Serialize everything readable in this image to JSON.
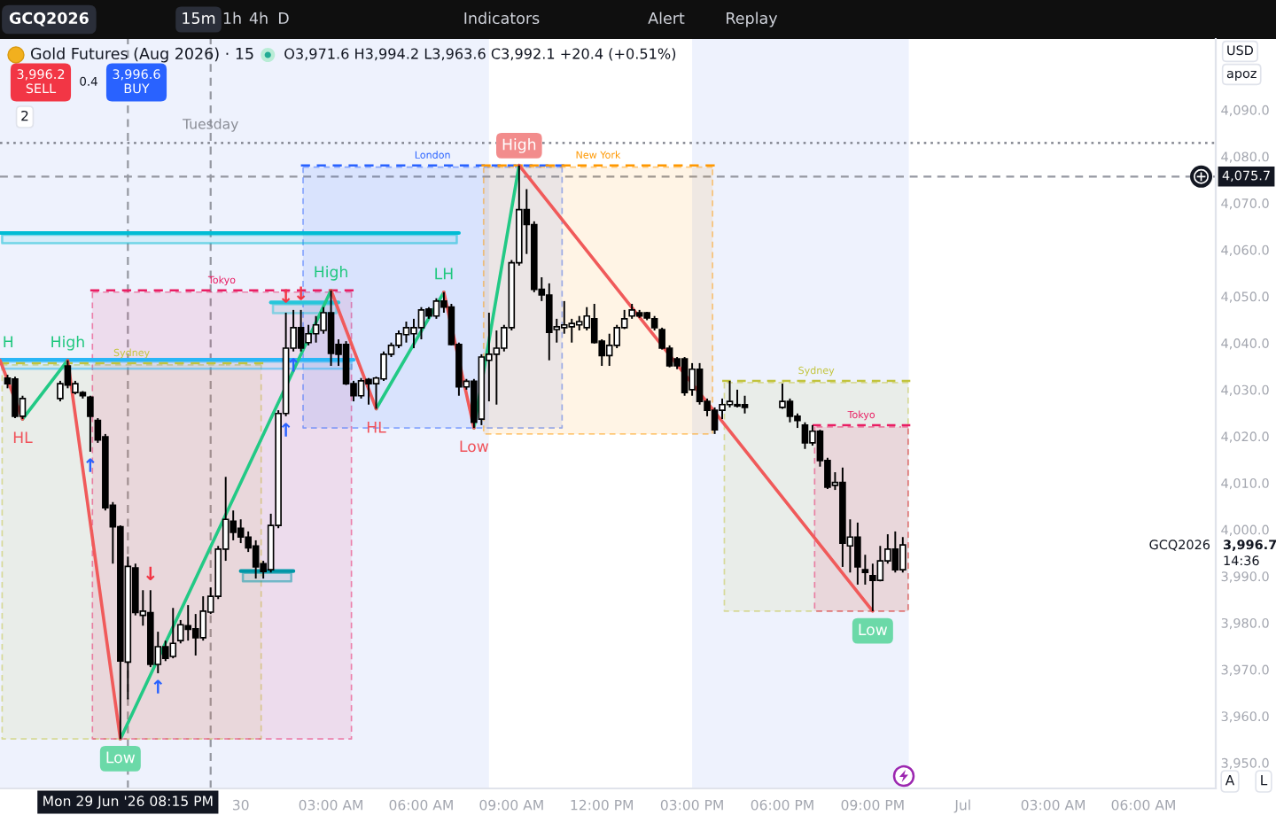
{
  "chart_data": {
    "type": "candlestick",
    "title": "Gold Futures (Aug 2026) · 15",
    "subtitle": "O3,971.6 H3,994.2 L3,963.6 C3,992.1 +20.4 (+0.51%)",
    "color": "#000000",
    "x": [
      "2026-06-29T16:15",
      "2026-06-29T16:30",
      "2026-06-29T16:45",
      "2026-06-29T18:00",
      "2026-06-29T18:15",
      "2026-06-29T18:30",
      "2026-06-29T18:45",
      "2026-06-29T19:00",
      "2026-06-29T19:15",
      "2026-06-29T19:30",
      "2026-06-29T19:45",
      "2026-06-29T20:00",
      "2026-06-29T20:15",
      "2026-06-29T20:30",
      "2026-06-29T20:45",
      "2026-06-29T21:00",
      "2026-06-29T21:15",
      "2026-06-29T21:30",
      "2026-06-29T21:45",
      "2026-06-29T22:00",
      "2026-06-29T22:15",
      "2026-06-29T22:30",
      "2026-06-29T22:45",
      "2026-06-29T23:00",
      "2026-06-29T23:15",
      "2026-06-29T23:30",
      "2026-06-29T23:45",
      "2026-06-30T00:00",
      "2026-06-30T00:15",
      "2026-06-30T00:30",
      "2026-06-30T00:45",
      "2026-06-30T01:00",
      "2026-06-30T01:15",
      "2026-06-30T01:30",
      "2026-06-30T01:45",
      "2026-06-30T02:00",
      "2026-06-30T02:15",
      "2026-06-30T02:30",
      "2026-06-30T02:45",
      "2026-06-30T03:00",
      "2026-06-30T03:15",
      "2026-06-30T03:30",
      "2026-06-30T03:45",
      "2026-06-30T04:00",
      "2026-06-30T04:15",
      "2026-06-30T04:30",
      "2026-06-30T04:45",
      "2026-06-30T05:00",
      "2026-06-30T05:15",
      "2026-06-30T05:30",
      "2026-06-30T05:45",
      "2026-06-30T06:00",
      "2026-06-30T06:15",
      "2026-06-30T06:30",
      "2026-06-30T06:45",
      "2026-06-30T07:00",
      "2026-06-30T07:15",
      "2026-06-30T07:30",
      "2026-06-30T07:45",
      "2026-06-30T08:00",
      "2026-06-30T08:15",
      "2026-06-30T08:30",
      "2026-06-30T08:45",
      "2026-06-30T09:00",
      "2026-06-30T09:15",
      "2026-06-30T09:30",
      "2026-06-30T09:45",
      "2026-06-30T10:00",
      "2026-06-30T10:15",
      "2026-06-30T10:30",
      "2026-06-30T10:45",
      "2026-06-30T11:00",
      "2026-06-30T11:15",
      "2026-06-30T11:30",
      "2026-06-30T11:45",
      "2026-06-30T12:00",
      "2026-06-30T12:15",
      "2026-06-30T12:30",
      "2026-06-30T12:45",
      "2026-06-30T13:00",
      "2026-06-30T13:15",
      "2026-06-30T13:30",
      "2026-06-30T13:45",
      "2026-06-30T14:00",
      "2026-06-30T14:15",
      "2026-06-30T14:30",
      "2026-06-30T14:45",
      "2026-06-30T15:00",
      "2026-06-30T15:15",
      "2026-06-30T15:30",
      "2026-06-30T15:45",
      "2026-06-30T16:00",
      "2026-06-30T16:15",
      "2026-06-30T16:30",
      "2026-06-30T16:45",
      "2026-06-30T18:00",
      "2026-06-30T18:15",
      "2026-06-30T18:30",
      "2026-06-30T18:45",
      "2026-06-30T19:00",
      "2026-06-30T19:15",
      "2026-06-30T19:30",
      "2026-06-30T19:45",
      "2026-06-30T20:00",
      "2026-06-30T20:15",
      "2026-06-30T20:30",
      "2026-06-30T20:45",
      "2026-06-30T21:00",
      "2026-06-30T21:15",
      "2026-06-30T21:30",
      "2026-06-30T21:45",
      "2026-06-30T22:00"
    ],
    "ohlc": [
      [
        4032.5,
        4033.2,
        4030.3,
        4031.3
      ],
      [
        4032.3,
        4032.8,
        4023.9,
        4024.3
      ],
      [
        4024.3,
        4028.7,
        4023.7,
        4028.1
      ],
      [
        4028.1,
        4031.9,
        4027.5,
        4031.3
      ],
      [
        4035.1,
        4036.3,
        4030.3,
        4031.0
      ],
      [
        4029.4,
        4031.9,
        4029.0,
        4031.3
      ],
      [
        4029.4,
        4029.7,
        4028.1,
        4028.7
      ],
      [
        4028.4,
        4028.7,
        4016.7,
        4024.3
      ],
      [
        4023.4,
        4023.9,
        4018.6,
        4019.2
      ],
      [
        4019.9,
        4020.5,
        4004.1,
        4004.7
      ],
      [
        4005.2,
        4005.9,
        3992.7,
        4000.6
      ],
      [
        4000.6,
        4000.9,
        3955.1,
        3971.8
      ],
      [
        3971.6,
        3994.2,
        3963.6,
        3992.1
      ],
      [
        3991.8,
        3992.7,
        3981.6,
        3982.2
      ],
      [
        3981.6,
        3987.0,
        3979.4,
        3982.5
      ],
      [
        3982.2,
        3987.0,
        3970.5,
        3971.1
      ],
      [
        3971.1,
        3978.1,
        3969.2,
        3974.9
      ],
      [
        3974.9,
        3976.2,
        3971.8,
        3972.4
      ],
      [
        3972.8,
        3983.2,
        3972.4,
        3975.6
      ],
      [
        3976.2,
        3980.6,
        3975.6,
        3979.6
      ],
      [
        3979.4,
        3983.8,
        3976.2,
        3978.6
      ],
      [
        3978.7,
        3981.9,
        3973.0,
        3976.8
      ],
      [
        3976.8,
        3985.7,
        3976.2,
        3982.5
      ],
      [
        3982.3,
        3987.6,
        3981.9,
        3985.7
      ],
      [
        3985.7,
        3996.5,
        3985.1,
        3995.8
      ],
      [
        3995.8,
        4011.3,
        3993.3,
        4002.2
      ],
      [
        4001.8,
        4004.1,
        3997.7,
        3999.4
      ],
      [
        4000.3,
        4002.2,
        3997.1,
        3998.4
      ],
      [
        3998.4,
        3999.6,
        3995.2,
        3996.1
      ],
      [
        3996.5,
        3997.7,
        3989.5,
        3992.0
      ],
      [
        3992.7,
        3993.3,
        3989.5,
        3991.0
      ],
      [
        3991.4,
        4003.4,
        3990.8,
        4000.9
      ],
      [
        4000.9,
        4025.6,
        4000.3,
        4024.9
      ],
      [
        4024.9,
        4046.5,
        4024.3,
        4038.9
      ],
      [
        4038.9,
        4047.1,
        4038.2,
        4043.3
      ],
      [
        4043.3,
        4047.1,
        4038.2,
        4038.9
      ],
      [
        4040.1,
        4043.9,
        4039.5,
        4042.0
      ],
      [
        4042.0,
        4045.8,
        4040.1,
        4043.9
      ],
      [
        4042.7,
        4047.7,
        4042.0,
        4046.5
      ],
      [
        4046.5,
        4051.3,
        4035.1,
        4037.8
      ],
      [
        4039.7,
        4040.8,
        4035.1,
        4037.6
      ],
      [
        4039.7,
        4040.4,
        4031.0,
        4031.3
      ],
      [
        4031.3,
        4031.9,
        4027.5,
        4028.7
      ],
      [
        4028.7,
        4032.5,
        4028.1,
        4031.9
      ],
      [
        4032.2,
        4032.5,
        4026.8,
        4031.3
      ],
      [
        4031.3,
        4032.8,
        4025.9,
        4032.5
      ],
      [
        4032.3,
        4038.2,
        4031.9,
        4037.6
      ],
      [
        4037.6,
        4040.1,
        4037.0,
        4039.5
      ],
      [
        4039.5,
        4042.7,
        4038.9,
        4042.0
      ],
      [
        4041.8,
        4044.6,
        4040.1,
        4043.3
      ],
      [
        4042.0,
        4045.2,
        4038.9,
        4043.3
      ],
      [
        4043.3,
        4047.7,
        4040.8,
        4047.1
      ],
      [
        4047.3,
        4047.7,
        4045.2,
        4045.8
      ],
      [
        4045.8,
        4049.6,
        4045.2,
        4049.0
      ],
      [
        4049.0,
        4050.9,
        4046.5,
        4047.7
      ],
      [
        4047.7,
        4048.4,
        4039.5,
        4039.7
      ],
      [
        4039.7,
        4040.1,
        4028.7,
        4030.6
      ],
      [
        4030.6,
        4032.3,
        4030.0,
        4031.8
      ],
      [
        4031.8,
        4032.3,
        4021.8,
        4023.0
      ],
      [
        4023.7,
        4037.6,
        4022.4,
        4037.0
      ],
      [
        4036.3,
        4046.5,
        4027.5,
        4037.6
      ],
      [
        4037.6,
        4042.7,
        4026.8,
        4038.9
      ],
      [
        4038.9,
        4043.9,
        4038.2,
        4043.3
      ],
      [
        4043.3,
        4057.8,
        4042.7,
        4057.2
      ],
      [
        4057.2,
        4078.1,
        4056.6,
        4068.6
      ],
      [
        4068.6,
        4073.0,
        4059.1,
        4065.4
      ],
      [
        4065.4,
        4066.1,
        4050.9,
        4051.5
      ],
      [
        4051.5,
        4054.1,
        4049.0,
        4050.3
      ],
      [
        4050.3,
        4052.8,
        4036.3,
        4042.3
      ],
      [
        4042.9,
        4045.2,
        4040.1,
        4043.5
      ],
      [
        4043.3,
        4049.0,
        4042.0,
        4043.9
      ],
      [
        4043.5,
        4045.2,
        4040.1,
        4044.2
      ],
      [
        4043.9,
        4045.8,
        4042.7,
        4044.6
      ],
      [
        4043.3,
        4047.7,
        4042.7,
        4045.8
      ],
      [
        4045.2,
        4048.4,
        4039.9,
        4040.1
      ],
      [
        4040.4,
        4040.8,
        4035.1,
        4037.3
      ],
      [
        4037.3,
        4042.0,
        4035.1,
        4039.5
      ],
      [
        4039.5,
        4043.9,
        4038.9,
        4043.3
      ],
      [
        4043.3,
        4047.1,
        4043.0,
        4045.2
      ],
      [
        4045.8,
        4048.4,
        4045.2,
        4047.1
      ],
      [
        4046.5,
        4047.1,
        4045.4,
        4045.8
      ],
      [
        4046.5,
        4046.7,
        4044.9,
        4045.4
      ],
      [
        4045.2,
        4045.8,
        4042.7,
        4043.3
      ],
      [
        4042.9,
        4043.3,
        4038.6,
        4038.9
      ],
      [
        4038.9,
        4039.5,
        4034.8,
        4035.1
      ],
      [
        4036.6,
        4037.0,
        4034.4,
        4035.1
      ],
      [
        4036.6,
        4037.0,
        4028.7,
        4029.4
      ],
      [
        4030.0,
        4035.7,
        4028.7,
        4034.4
      ],
      [
        4034.4,
        4035.7,
        4026.8,
        4027.5
      ],
      [
        4027.5,
        4028.1,
        4024.3,
        4025.6
      ],
      [
        4025.6,
        4026.2,
        4020.5,
        4021.4
      ],
      [
        4025.6,
        4028.1,
        4023.7,
        4026.8
      ],
      [
        4026.8,
        4031.9,
        4026.2,
        4027.5
      ],
      [
        4026.5,
        4030.0,
        4026.2,
        4026.8
      ],
      [
        4026.8,
        4028.7,
        4024.9,
        4026.2
      ],
      [
        4026.2,
        4031.3,
        4025.9,
        4027.5
      ],
      [
        4027.5,
        4028.1,
        4023.0,
        4024.3
      ],
      [
        4024.3,
        4024.9,
        4021.8,
        4023.4
      ],
      [
        4022.4,
        4023.0,
        4017.3,
        4018.6
      ],
      [
        4018.6,
        4022.4,
        4018.0,
        4021.1
      ],
      [
        4021.1,
        4021.4,
        4013.5,
        4014.8
      ],
      [
        4014.8,
        4015.4,
        4008.7,
        4009.1
      ],
      [
        4009.5,
        4012.3,
        4008.5,
        4010.1
      ],
      [
        4010.1,
        4013.3,
        3992.0,
        3997.1
      ],
      [
        3996.5,
        4002.2,
        3990.8,
        3998.4
      ],
      [
        3998.4,
        4001.5,
        3988.2,
        3992.0
      ],
      [
        3991.4,
        3994.6,
        3988.2,
        3990.8
      ],
      [
        3990.1,
        3992.7,
        3982.5,
        3989.1
      ],
      [
        3989.1,
        3996.5,
        3988.9,
        3993.3
      ],
      [
        3993.3,
        3999.0,
        3992.7,
        3995.8
      ],
      [
        3995.8,
        3999.6,
        3990.8,
        3991.4
      ],
      [
        3991.4,
        3998.4,
        3990.8,
        3996.7
      ]
    ],
    "xlim": [
      "2026-06-29T16:00",
      "2026-07-01T08:24"
    ],
    "ylim": [
      3944.5,
      4105.2
    ],
    "xticks": [
      {
        "value": "2026-06-30T00:00",
        "label": "30"
      },
      {
        "value": "2026-06-30T03:00",
        "label": "03:00 AM"
      },
      {
        "value": "2026-06-30T06:00",
        "label": "06:00 AM"
      },
      {
        "value": "2026-06-30T09:00",
        "label": "09:00 AM"
      },
      {
        "value": "2026-06-30T12:00",
        "label": "12:00 PM"
      },
      {
        "value": "2026-06-30T15:00",
        "label": "03:00 PM"
      },
      {
        "value": "2026-06-30T18:00",
        "label": "06:00 PM"
      },
      {
        "value": "2026-06-30T21:00",
        "label": "09:00 PM"
      },
      {
        "value": "2026-07-01T00:00",
        "label": "Jul"
      },
      {
        "value": "2026-07-01T03:00",
        "label": "03:00 AM"
      },
      {
        "value": "2026-07-01T06:00",
        "label": "06:00 AM"
      }
    ],
    "yticks": [
      {
        "value": 3950,
        "label": "3,950.0"
      },
      {
        "value": 3960,
        "label": "3,960.0"
      },
      {
        "value": 3970,
        "label": "3,970.0"
      },
      {
        "value": 3980,
        "label": "3,980.0"
      },
      {
        "value": 3990,
        "label": "3,990.0"
      },
      {
        "value": 4000,
        "label": "4,000.0"
      },
      {
        "value": 4010,
        "label": "4,010.0"
      },
      {
        "value": 4020,
        "label": "4,020.0"
      },
      {
        "value": 4030,
        "label": "4,030.0"
      },
      {
        "value": 4040,
        "label": "4,040.0"
      },
      {
        "value": 4050,
        "label": "4,050.0"
      },
      {
        "value": 4060,
        "label": "4,060.0"
      },
      {
        "value": 4070,
        "label": "4,070.0"
      },
      {
        "value": 4080,
        "label": "4,080.0"
      },
      {
        "value": 4090,
        "label": "4,090.0"
      }
    ],
    "bands": [
      {
        "axis": "x",
        "from": "2026-06-29T16:00",
        "to": "2026-06-30T08:15",
        "color": "#eef2fd"
      },
      {
        "axis": "x",
        "from": "2026-06-30T15:00",
        "to": "2026-06-30T22:12",
        "color": "#eef2fd"
      }
    ],
    "ref_lines": [
      {
        "axis": "x",
        "value": "2026-06-29T20:15",
        "label": "Mon 29 Jun '26 08:15 PM",
        "color": "#9598a1",
        "line_style": "dashed"
      },
      {
        "axis": "x",
        "value": "2026-06-29T23:00",
        "label": "Tuesday",
        "color": "#9598a1",
        "line_style": "dashed"
      },
      {
        "axis": "y",
        "value": 4075.7,
        "label": "4,075.7",
        "color": "#9598a1",
        "line_style": "dashed"
      },
      {
        "axis": "y",
        "value": 4082.9,
        "color": "#787b86",
        "line_style": "dotted"
      }
    ],
    "series": [
      {
        "type": "line",
        "name": "Sydney",
        "color": "#c2c43c",
        "line_style": "dashed",
        "x": [
          "2026-06-29T16:00",
          "2026-06-30T00:45"
        ],
        "values": [
          4035.7,
          4035.7
        ],
        "lower": [
          3955.1,
          3955.1
        ],
        "upper": [
          4035.7,
          4035.7
        ]
      },
      {
        "type": "line",
        "name": "Tokyo",
        "color": "#e91e63",
        "line_style": "dashed",
        "x": [
          "2026-06-29T19:00",
          "2026-06-30T03:45"
        ],
        "values": [
          4051.3,
          4051.3
        ],
        "lower": [
          3955.1,
          3955.1
        ],
        "upper": [
          4051.3,
          4051.3
        ]
      },
      {
        "type": "line",
        "name": "London",
        "color": "#2962ff",
        "line_style": "dashed",
        "x": [
          "2026-06-30T02:00",
          "2026-06-30T10:45"
        ],
        "values": [
          4078.1,
          4078.1
        ],
        "lower": [
          4021.8,
          4021.8
        ],
        "upper": [
          4078.1,
          4078.1
        ]
      },
      {
        "type": "line",
        "name": "New York",
        "color": "#ff9800",
        "line_style": "dashed",
        "x": [
          "2026-06-30T08:00",
          "2026-06-30T15:45"
        ],
        "values": [
          4078.1,
          4078.1
        ],
        "lower": [
          4020.5,
          4020.5
        ],
        "upper": [
          4078.1,
          4078.1
        ]
      },
      {
        "type": "line",
        "name": "Sydney",
        "color": "#c2c43c",
        "line_style": "dashed",
        "x": [
          "2026-06-30T16:00",
          "2026-06-30T22:15"
        ],
        "values": [
          4031.9,
          4031.9
        ],
        "lower": [
          3982.5,
          3982.5
        ],
        "upper": [
          4031.9,
          4031.9
        ]
      },
      {
        "type": "line",
        "name": "Tokyo",
        "color": "#e91e63",
        "line_style": "dashed",
        "x": [
          "2026-06-30T19:00",
          "2026-06-30T22:15"
        ],
        "values": [
          4022.4,
          4022.4
        ],
        "lower": [
          3982.5,
          3982.5
        ],
        "upper": [
          4022.4,
          4022.4
        ]
      },
      {
        "type": "line",
        "color": "#00bcd4",
        "line_style": "solid",
        "x": [
          "2026-06-29T16:00",
          "2026-06-30T07:15"
        ],
        "values": [
          4063.6,
          4063.6
        ],
        "lower": [
          4061.4,
          4061.4
        ],
        "upper": [
          4063.6,
          4063.6
        ]
      },
      {
        "type": "line",
        "color": "#29b6f6",
        "line_style": "solid",
        "x": [
          "2026-06-29T16:00",
          "2026-06-30T03:45"
        ],
        "values": [
          4036.4,
          4036.4
        ],
        "lower": [
          4034.5,
          4034.5
        ],
        "upper": [
          4036.4,
          4036.4
        ]
      },
      {
        "type": "line",
        "color": "#26c6da",
        "line_style": "solid",
        "x": [
          "2026-06-30T01:00",
          "2026-06-30T03:15"
        ],
        "values": [
          4048.7,
          4048.7
        ],
        "lower": [
          4046.4,
          4046.4
        ],
        "upper": [
          4048.7,
          4048.7
        ]
      },
      {
        "type": "line",
        "color": "#0097a7",
        "line_style": "solid",
        "x": [
          "2026-06-30T00:00",
          "2026-06-30T01:45"
        ],
        "values": [
          3991.1,
          3991.1
        ],
        "lower": [
          3988.9,
          3988.9
        ],
        "upper": [
          3991.1,
          3991.1
        ]
      },
      {
        "type": "line",
        "color": "#22c985",
        "x": [
          "2026-06-29T16:45",
          "2026-06-29T18:15",
          "2026-06-29T19:00",
          "2026-06-29T20:00",
          "2026-06-30T03:00",
          "2026-06-30T03:45",
          "2026-06-30T04:30",
          "2026-06-30T06:45",
          "2026-06-30T07:15",
          "2026-06-30T07:45",
          "2026-06-30T09:15"
        ],
        "values": [
          4023.7,
          4036.3,
          null,
          3955.1,
          4051.3,
          null,
          4025.9,
          4050.9,
          null,
          4021.8,
          4078.1
        ]
      },
      {
        "type": "line",
        "color": "#f05a5a",
        "x": [
          "2026-06-29T16:00",
          "2026-06-29T16:45",
          "2026-06-29T17:30",
          "2026-06-29T18:15",
          "2026-06-29T20:00",
          "2026-06-29T23:30",
          "2026-06-30T03:00",
          "2026-06-30T04:30",
          "2026-06-30T05:30",
          "2026-06-30T06:45",
          "2026-06-30T07:45",
          "2026-06-30T08:30",
          "2026-06-30T09:15",
          "2026-06-30T21:00"
        ],
        "values": [
          4036.3,
          4023.7,
          null,
          4036.3,
          3955.1,
          null,
          4051.3,
          4025.9,
          null,
          4050.9,
          4021.8,
          null,
          4078.1,
          3982.5
        ]
      }
    ],
    "annotations": [
      "GCQ2026",
      "15m",
      "1h",
      "4h",
      "D",
      "Indicators",
      "Alert",
      "Replay",
      "3,996.2\nSELL",
      "0.4",
      "3,996.6\nBUY",
      "USD",
      "apoz",
      "2",
      "A",
      "L",
      "14:36",
      "GCQ2026",
      "3,996.7",
      {
        "text": "H",
        "x": "2026-06-29T16:00",
        "y": 4036.3
      },
      {
        "text": "High",
        "x": "2026-06-29T18:15",
        "y": 4036.3
      },
      {
        "text": "HL",
        "x": "2026-06-29T16:45",
        "y": 4023.7
      },
      {
        "text": "Low",
        "x": "2026-06-29T20:00",
        "y": 3955.1
      },
      {
        "text": "High",
        "x": "2026-06-30T03:00",
        "y": 4051.3
      },
      {
        "text": "HL",
        "x": "2026-06-30T04:30",
        "y": 4025.9
      },
      {
        "text": "LH",
        "x": "2026-06-30T06:45",
        "y": 4050.9
      },
      {
        "text": "Low",
        "x": "2026-06-30T07:45",
        "y": 4021.8
      },
      {
        "text": "High",
        "x": "2026-06-30T09:15",
        "y": 4078.1
      },
      {
        "text": "Low",
        "x": "2026-06-30T21:00",
        "y": 3982.5
      },
      {
        "text": "↑",
        "x": "2026-06-29T19:00",
        "y": 4016.7
      },
      {
        "text": "↓",
        "x": "2026-06-29T21:00",
        "y": 3987.0
      },
      {
        "text": "↑",
        "x": "2026-06-29T21:15",
        "y": 3969.2
      },
      {
        "text": "↑",
        "x": "2026-06-30T01:30",
        "y": 4024.3
      },
      {
        "text": "↑",
        "x": "2026-06-30T01:45",
        "y": 4038.2
      },
      {
        "text": "↓",
        "x": "2026-06-30T01:30",
        "y": 4046.5
      },
      {
        "text": "↓",
        "x": "2026-06-30T02:00",
        "y": 4047.1
      }
    ]
  }
}
